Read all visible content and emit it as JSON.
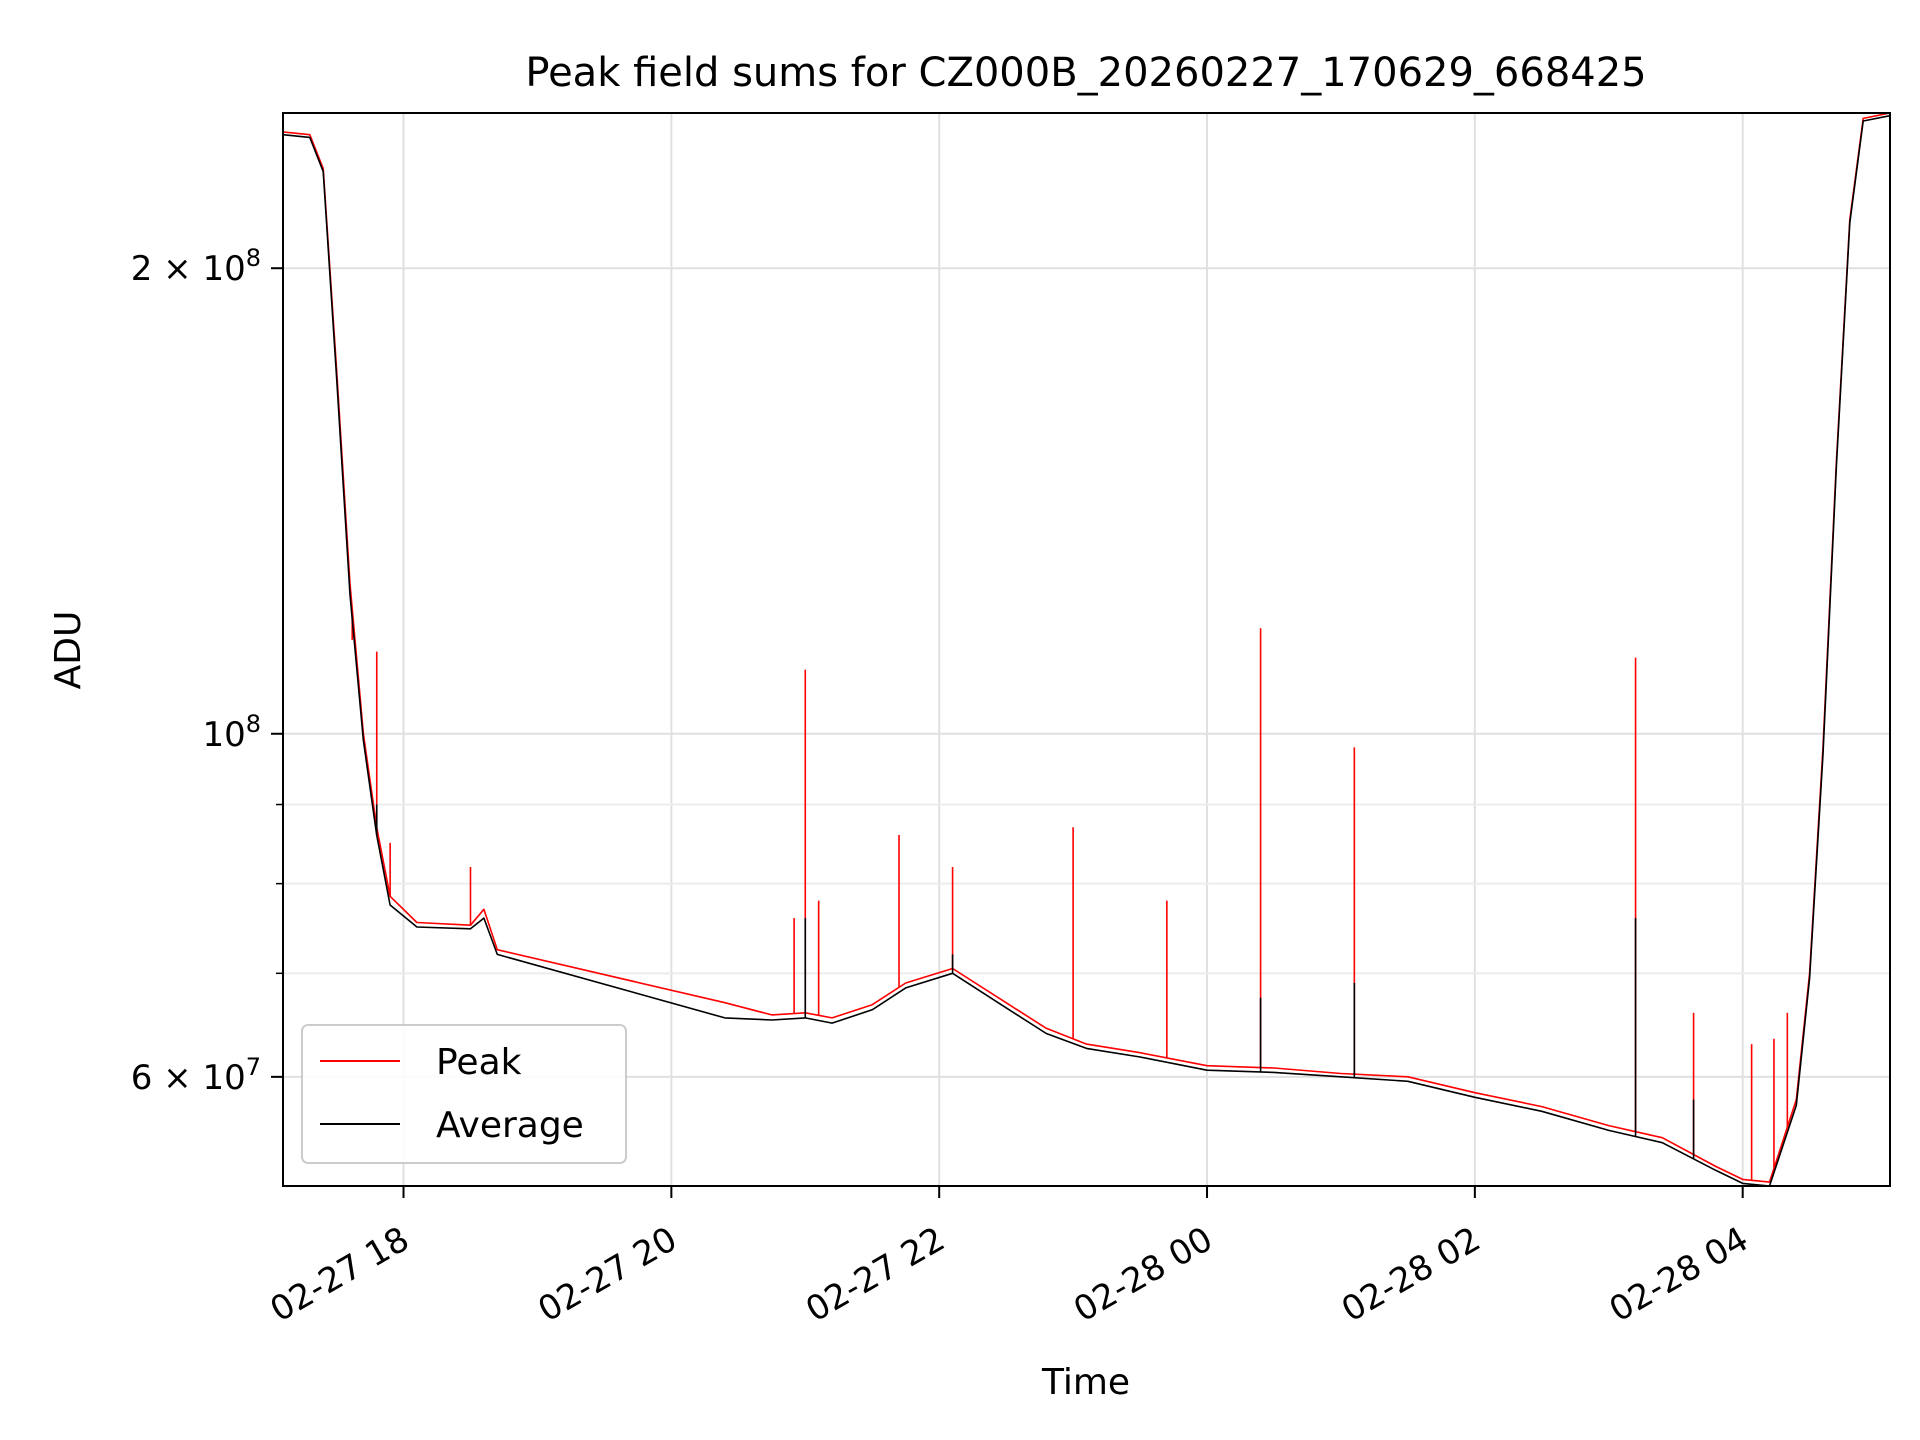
{
  "chart_data": {
    "type": "line",
    "title": "Peak field sums for CZ000B_20260227_170629_668425",
    "xlabel": "Time",
    "ylabel": "ADU",
    "yscale": "log",
    "grid": true,
    "legend_position": "lower-left",
    "xlim": [
      "2026-02-27 17:06",
      "2026-02-28 05:06"
    ],
    "ylim": [
      51000000,
      252000000
    ],
    "x_ticks": [
      {
        "value": "2026-02-27 18:00",
        "label": "02-27 18"
      },
      {
        "value": "2026-02-27 20:00",
        "label": "02-27 20"
      },
      {
        "value": "2026-02-27 22:00",
        "label": "02-27 22"
      },
      {
        "value": "2026-02-28 00:00",
        "label": "02-28 00"
      },
      {
        "value": "2026-02-28 02:00",
        "label": "02-28 02"
      },
      {
        "value": "2026-02-28 04:00",
        "label": "02-28 04"
      }
    ],
    "y_ticks_major": [
      {
        "value": 60000000,
        "base": "6",
        "exp": "7"
      },
      {
        "value": 100000000,
        "base": "",
        "exp": "8"
      },
      {
        "value": 200000000,
        "base": "2",
        "exp": "8"
      }
    ],
    "y_ticks_minor": [
      70000000,
      80000000,
      90000000,
      300000000
    ],
    "y_tick_times_sign": "×",
    "y_tick_power_base": "10",
    "series": [
      {
        "name": "Peak",
        "color": "#ff0000",
        "points": [
          [
            "2026-02-27 17:06",
            245000000
          ],
          [
            "2026-02-27 17:18",
            244000000
          ],
          [
            "2026-02-27 17:24",
            232000000
          ],
          [
            "2026-02-27 17:30",
            172000000
          ],
          [
            "2026-02-27 17:36",
            125000000
          ],
          [
            "2026-02-27 17:42",
            100000000
          ],
          [
            "2026-02-27 17:48",
            87000000
          ],
          [
            "2026-02-27 17:54",
            78500000
          ],
          [
            "2026-02-27 18:06",
            75500000
          ],
          [
            "2026-02-27 18:30",
            75200000
          ],
          [
            "2026-02-27 18:36",
            77000000
          ],
          [
            "2026-02-27 18:42",
            72500000
          ],
          [
            "2026-02-27 20:24",
            67000000
          ],
          [
            "2026-02-27 20:45",
            65800000
          ],
          [
            "2026-02-27 21:00",
            66000000
          ],
          [
            "2026-02-27 21:12",
            65500000
          ],
          [
            "2026-02-27 21:30",
            66800000
          ],
          [
            "2026-02-27 21:45",
            69000000
          ],
          [
            "2026-02-27 22:06",
            70500000
          ],
          [
            "2026-02-27 22:30",
            67000000
          ],
          [
            "2026-02-27 22:48",
            64500000
          ],
          [
            "2026-02-27 23:06",
            63000000
          ],
          [
            "2026-02-27 23:30",
            62200000
          ],
          [
            "2026-02-28 00:00",
            61000000
          ],
          [
            "2026-02-28 00:30",
            60800000
          ],
          [
            "2026-02-28 01:00",
            60300000
          ],
          [
            "2026-02-28 01:30",
            60000000
          ],
          [
            "2026-02-28 02:00",
            58600000
          ],
          [
            "2026-02-28 02:30",
            57400000
          ],
          [
            "2026-02-28 03:00",
            55800000
          ],
          [
            "2026-02-28 03:24",
            54800000
          ],
          [
            "2026-02-28 03:48",
            52500000
          ],
          [
            "2026-02-28 04:00",
            51500000
          ],
          [
            "2026-02-28 04:12",
            51300000
          ],
          [
            "2026-02-28 04:24",
            58000000
          ],
          [
            "2026-02-28 04:30",
            70000000
          ],
          [
            "2026-02-28 04:36",
            98000000
          ],
          [
            "2026-02-28 04:42",
            150000000
          ],
          [
            "2026-02-28 04:48",
            215000000
          ],
          [
            "2026-02-28 04:54",
            250000000
          ],
          [
            "2026-02-28 05:06",
            252000000
          ]
        ],
        "spikes": [
          [
            "2026-02-27 17:37",
            115000000
          ],
          [
            "2026-02-27 17:48",
            113000000
          ],
          [
            "2026-02-27 17:54",
            85000000
          ],
          [
            "2026-02-27 18:30",
            82000000
          ],
          [
            "2026-02-27 20:55",
            76000000
          ],
          [
            "2026-02-27 21:00",
            110000000
          ],
          [
            "2026-02-27 21:06",
            78000000
          ],
          [
            "2026-02-27 21:42",
            86000000
          ],
          [
            "2026-02-27 22:06",
            82000000
          ],
          [
            "2026-02-27 23:00",
            87000000
          ],
          [
            "2026-02-27 23:42",
            78000000
          ],
          [
            "2026-02-28 00:24",
            117000000
          ],
          [
            "2026-02-28 01:06",
            98000000
          ],
          [
            "2026-02-28 03:12",
            112000000
          ],
          [
            "2026-02-28 03:38",
            66000000
          ],
          [
            "2026-02-28 04:04",
            63000000
          ],
          [
            "2026-02-28 04:14",
            63500000
          ],
          [
            "2026-02-28 04:20",
            66000000
          ]
        ]
      },
      {
        "name": "Average",
        "color": "#000000",
        "points": [
          [
            "2026-02-27 17:06",
            244000000
          ],
          [
            "2026-02-27 17:18",
            243000000
          ],
          [
            "2026-02-27 17:24",
            231000000
          ],
          [
            "2026-02-27 17:30",
            170000000
          ],
          [
            "2026-02-27 17:36",
            123000000
          ],
          [
            "2026-02-27 17:42",
            99000000
          ],
          [
            "2026-02-27 17:48",
            86000000
          ],
          [
            "2026-02-27 17:54",
            77500000
          ],
          [
            "2026-02-27 18:06",
            75000000
          ],
          [
            "2026-02-27 18:30",
            74800000
          ],
          [
            "2026-02-27 18:36",
            76000000
          ],
          [
            "2026-02-27 18:42",
            72000000
          ],
          [
            "2026-02-27 20:24",
            65500000
          ],
          [
            "2026-02-27 20:45",
            65300000
          ],
          [
            "2026-02-27 21:00",
            65500000
          ],
          [
            "2026-02-27 21:12",
            65000000
          ],
          [
            "2026-02-27 21:30",
            66300000
          ],
          [
            "2026-02-27 21:45",
            68500000
          ],
          [
            "2026-02-27 22:06",
            70000000
          ],
          [
            "2026-02-27 22:30",
            66500000
          ],
          [
            "2026-02-27 22:48",
            64000000
          ],
          [
            "2026-02-27 23:06",
            62600000
          ],
          [
            "2026-02-27 23:30",
            61800000
          ],
          [
            "2026-02-28 00:00",
            60600000
          ],
          [
            "2026-02-28 00:30",
            60400000
          ],
          [
            "2026-02-28 01:00",
            60000000
          ],
          [
            "2026-02-28 01:30",
            59600000
          ],
          [
            "2026-02-28 02:00",
            58200000
          ],
          [
            "2026-02-28 02:30",
            57000000
          ],
          [
            "2026-02-28 03:00",
            55400000
          ],
          [
            "2026-02-28 03:24",
            54400000
          ],
          [
            "2026-02-28 03:48",
            52200000
          ],
          [
            "2026-02-28 04:00",
            51200000
          ],
          [
            "2026-02-28 04:12",
            51000000
          ],
          [
            "2026-02-28 04:24",
            57500000
          ],
          [
            "2026-02-28 04:30",
            69500000
          ],
          [
            "2026-02-28 04:36",
            97000000
          ],
          [
            "2026-02-28 04:42",
            149000000
          ],
          [
            "2026-02-28 04:48",
            214000000
          ],
          [
            "2026-02-28 04:54",
            249000000
          ],
          [
            "2026-02-28 05:06",
            251000000
          ]
        ],
        "spikes": [
          [
            "2026-02-27 17:48",
            90000000
          ],
          [
            "2026-02-27 21:00",
            76000000
          ],
          [
            "2026-02-27 22:06",
            72000000
          ],
          [
            "2026-02-28 00:24",
            67500000
          ],
          [
            "2026-02-28 01:06",
            69000000
          ],
          [
            "2026-02-28 03:12",
            76000000
          ],
          [
            "2026-02-28 03:38",
            58000000
          ]
        ]
      }
    ]
  }
}
